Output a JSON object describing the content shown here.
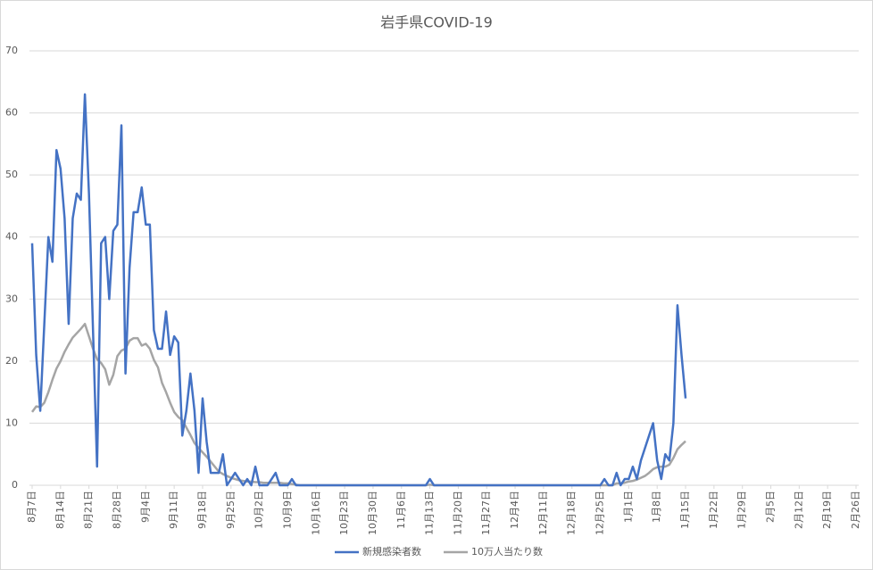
{
  "chart_data": {
    "type": "line",
    "title": "岩手県COVID-19",
    "categories": [
      "8月7日",
      null,
      null,
      null,
      null,
      null,
      null,
      "8月14日",
      null,
      null,
      null,
      null,
      null,
      null,
      "8月21日",
      null,
      null,
      null,
      null,
      null,
      null,
      "8月28日",
      null,
      null,
      null,
      null,
      null,
      null,
      "9月4日",
      null,
      null,
      null,
      null,
      null,
      null,
      "9月11日",
      null,
      null,
      null,
      null,
      null,
      null,
      "9月18日",
      null,
      null,
      null,
      null,
      null,
      null,
      "9月25日",
      null,
      null,
      null,
      null,
      null,
      null,
      "10月2日",
      null,
      null,
      null,
      null,
      null,
      null,
      "10月9日",
      null,
      null,
      null,
      null,
      null,
      null,
      "10月16日",
      null,
      null,
      null,
      null,
      null,
      null,
      "10月23日",
      null,
      null,
      null,
      null,
      null,
      null,
      "10月30日",
      null,
      null,
      null,
      null,
      null,
      null,
      "11月6日",
      null,
      null,
      null,
      null,
      null,
      null,
      "11月13日",
      null,
      null,
      null,
      null,
      null,
      null,
      "11月20日",
      null,
      null,
      null,
      null,
      null,
      null,
      "11月27日",
      null,
      null,
      null,
      null,
      null,
      null,
      "12月4日",
      null,
      null,
      null,
      null,
      null,
      null,
      "12月11日",
      null,
      null,
      null,
      null,
      null,
      null,
      "12月18日",
      null,
      null,
      null,
      null,
      null,
      null,
      "12月25日",
      null,
      null,
      null,
      null,
      null,
      null,
      "1月1日",
      null,
      null,
      null,
      null,
      null,
      null,
      "1月8日",
      null,
      null,
      null,
      null,
      null,
      null,
      "1月15日",
      null,
      null,
      null,
      null,
      null,
      null,
      "1月22日",
      null,
      null,
      null,
      null,
      null,
      null,
      "1月29日",
      null,
      null,
      null,
      null,
      null,
      null,
      "2月5日",
      null,
      null,
      null,
      null,
      null,
      null,
      "2月12日",
      null,
      null,
      null,
      null,
      null,
      null,
      "2月19日",
      null,
      null,
      null,
      null,
      null,
      null,
      "2月26日"
    ],
    "series": [
      {
        "name": "新規感染者数",
        "color": "#4472c4",
        "values": [
          39,
          21,
          12,
          26,
          40,
          36,
          54,
          51,
          43,
          26,
          43,
          47,
          46,
          63,
          47,
          25,
          3,
          39,
          40,
          30,
          41,
          42,
          58,
          18,
          35,
          44,
          44,
          48,
          42,
          42,
          25,
          22,
          22,
          28,
          21,
          24,
          23,
          8,
          12,
          18,
          12,
          2,
          14,
          7,
          2,
          2,
          2,
          5,
          0,
          1,
          2,
          1,
          0,
          1,
          0,
          3,
          0,
          0,
          0,
          1,
          2,
          0,
          0,
          0,
          1,
          0,
          0,
          0,
          0,
          0,
          0,
          0,
          0,
          0,
          0,
          0,
          0,
          0,
          0,
          0,
          0,
          0,
          0,
          0,
          0,
          0,
          0,
          0,
          0,
          0,
          0,
          0,
          0,
          0,
          0,
          0,
          0,
          0,
          1,
          0,
          0,
          0,
          0,
          0,
          0,
          0,
          0,
          0,
          0,
          0,
          0,
          0,
          0,
          0,
          0,
          0,
          0,
          0,
          0,
          0,
          0,
          0,
          0,
          0,
          0,
          0,
          0,
          0,
          0,
          0,
          0,
          0,
          0,
          0,
          0,
          0,
          0,
          0,
          0,
          0,
          0,
          1,
          0,
          0,
          2,
          0,
          1,
          1,
          3,
          1,
          4,
          6,
          8,
          10,
          4,
          1,
          5,
          4,
          10,
          29,
          21,
          14,
          null,
          null,
          null,
          null,
          null,
          null,
          null,
          null,
          null,
          null,
          null,
          null,
          null,
          null,
          null,
          null,
          null,
          null,
          null,
          null,
          null,
          null,
          null,
          null,
          null,
          null,
          null,
          null,
          null,
          null,
          null,
          null,
          null,
          null,
          null,
          null,
          null,
          null,
          null,
          null,
          null,
          null
        ]
      },
      {
        "name": "10万人当たり数",
        "color": "#a5a5a5",
        "values": [
          11.8,
          12.7,
          12.6,
          13.3,
          15,
          17,
          18.8,
          20,
          21.5,
          22.7,
          23.8,
          24.5,
          25.2,
          26,
          24,
          22,
          20.3,
          19.7,
          18.7,
          16.2,
          17.8,
          20.8,
          21.7,
          22,
          23.3,
          23.7,
          23.7,
          22.5,
          22.8,
          22,
          20.2,
          19,
          16.5,
          15,
          13.3,
          11.8,
          11,
          10.5,
          9.3,
          8.1,
          6.8,
          6,
          5.3,
          4.6,
          3.8,
          3,
          2.2,
          1.8,
          1.5,
          1.2,
          1,
          0.8,
          0.7,
          0.6,
          0.6,
          0.5,
          0.5,
          0.4,
          0.4,
          0.4,
          0.4,
          0.4,
          0.3,
          0.3,
          0.2,
          0.1,
          0,
          0,
          0,
          0,
          0,
          0,
          0,
          0,
          0,
          0,
          0,
          0,
          0,
          0,
          0,
          0,
          0,
          0,
          0,
          0,
          0,
          0,
          0,
          0,
          0,
          0,
          0,
          0,
          0,
          0,
          0,
          0,
          0.1,
          0,
          0,
          0,
          0,
          0,
          0,
          0,
          0,
          0,
          0,
          0,
          0,
          0,
          0,
          0,
          0,
          0,
          0,
          0,
          0,
          0,
          0,
          0,
          0,
          0,
          0,
          0,
          0,
          0,
          0,
          0,
          0,
          0,
          0,
          0,
          0,
          0,
          0,
          0,
          0,
          0,
          0,
          0,
          0,
          0,
          0.3,
          0.3,
          0.4,
          0.6,
          0.7,
          0.9,
          1.2,
          1.5,
          2,
          2.6,
          2.9,
          3,
          3,
          3.3,
          4.4,
          5.8,
          6.5,
          7.1,
          null,
          null,
          null,
          null,
          null,
          null,
          null,
          null,
          null,
          null,
          null,
          null,
          null,
          null,
          null,
          null,
          null,
          null,
          null,
          null,
          null,
          null,
          null,
          null,
          null,
          null,
          null,
          null,
          null,
          null,
          null,
          null,
          null,
          null,
          null,
          null,
          null,
          null,
          null,
          null,
          null,
          null
        ]
      }
    ],
    "ylim": [
      0,
      70
    ],
    "yticks": [
      0,
      10,
      20,
      30,
      40,
      50,
      60,
      70
    ],
    "grid": true,
    "legend": "bottom"
  }
}
